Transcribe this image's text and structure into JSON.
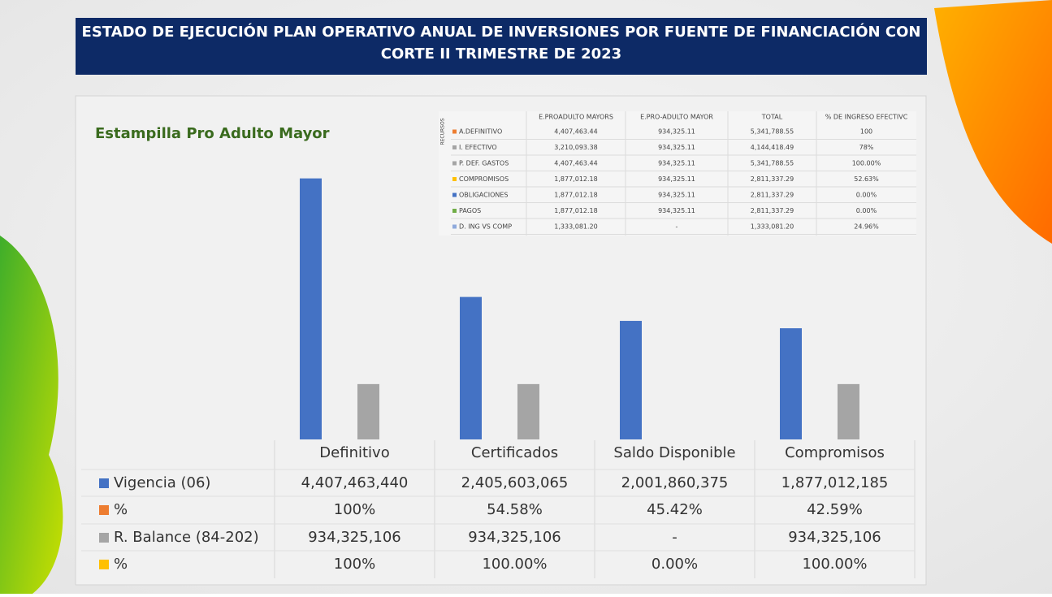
{
  "title": "ESTADO DE EJECUCIÓN PLAN OPERATIVO ANUAL DE INVERSIONES POR FUENTE DE FINANCIACIÓN CON CORTE II TRIMESTRE DE 2023",
  "chart_data": {
    "type": "bar",
    "title": "Estampilla Pro Adulto Mayor",
    "categories": [
      "Definitivo",
      "Certificados",
      "Saldo Disponible",
      "Compromisos"
    ],
    "ylim": [
      0,
      4800000000
    ],
    "series": [
      {
        "name": "Vigencia (06)",
        "color": "#4472c4",
        "values": [
          4407463440,
          2405603065,
          2001860375,
          1877012185
        ],
        "value_labels": [
          "4,407,463,440",
          "2,405,603,065",
          "2,001,860,375",
          "1,877,012,185"
        ]
      },
      {
        "name": "%",
        "color": "#ed7d31",
        "values": [
          100,
          54.58,
          45.42,
          42.59
        ],
        "value_labels": [
          "100%",
          "54.58%",
          "45.42%",
          "42.59%"
        ]
      },
      {
        "name": "R. Balance (84-202)",
        "color": "#a5a5a5",
        "values": [
          934325106,
          934325106,
          null,
          934325106
        ],
        "value_labels": [
          "934,325,106",
          "934,325,106",
          "-",
          "934,325,106"
        ]
      },
      {
        "name": "%",
        "color": "#ffc000",
        "values": [
          100,
          100,
          0,
          100
        ],
        "value_labels": [
          "100%",
          "100.00%",
          "0.00%",
          "100.00%"
        ]
      }
    ]
  },
  "table": {
    "row_group": "RECURSOS",
    "header": [
      "E.PROADULTO MAYORS",
      "E.PRO-ADULTO MAYOR",
      "TOTAL",
      "% DE INGRESO EFECTIVC"
    ],
    "rows": [
      {
        "color": "#ed7d31",
        "cells": [
          "A.DEFINITIVO",
          "4,407,463.44",
          "934,325.11",
          "5,341,788.55",
          "100"
        ]
      },
      {
        "color": "#a5a5a5",
        "cells": [
          "I. EFECTIVO",
          "3,210,093.38",
          "934,325.11",
          "4,144,418.49",
          "78%"
        ]
      },
      {
        "color": "#a5a5a5",
        "cells": [
          "P. DEF. GASTOS",
          "4,407,463.44",
          "934,325.11",
          "5,341,788.55",
          "100.00%"
        ]
      },
      {
        "color": "#ffc000",
        "cells": [
          "COMPROMISOS",
          "1,877,012.18",
          "934,325.11",
          "2,811,337.29",
          "52.63%"
        ]
      },
      {
        "color": "#4472c4",
        "cells": [
          "OBLIGACIONES",
          "1,877,012.18",
          "934,325.11",
          "2,811,337.29",
          "0.00%"
        ]
      },
      {
        "color": "#70ad47",
        "cells": [
          "PAGOS",
          "1,877,012.18",
          "934,325.11",
          "2,811,337.29",
          "0.00%"
        ]
      },
      {
        "color": "#8faadc",
        "cells": [
          "D. ING VS COMP",
          "1,333,081.20",
          "-",
          "1,333,081.20",
          "24.96%"
        ]
      }
    ]
  }
}
